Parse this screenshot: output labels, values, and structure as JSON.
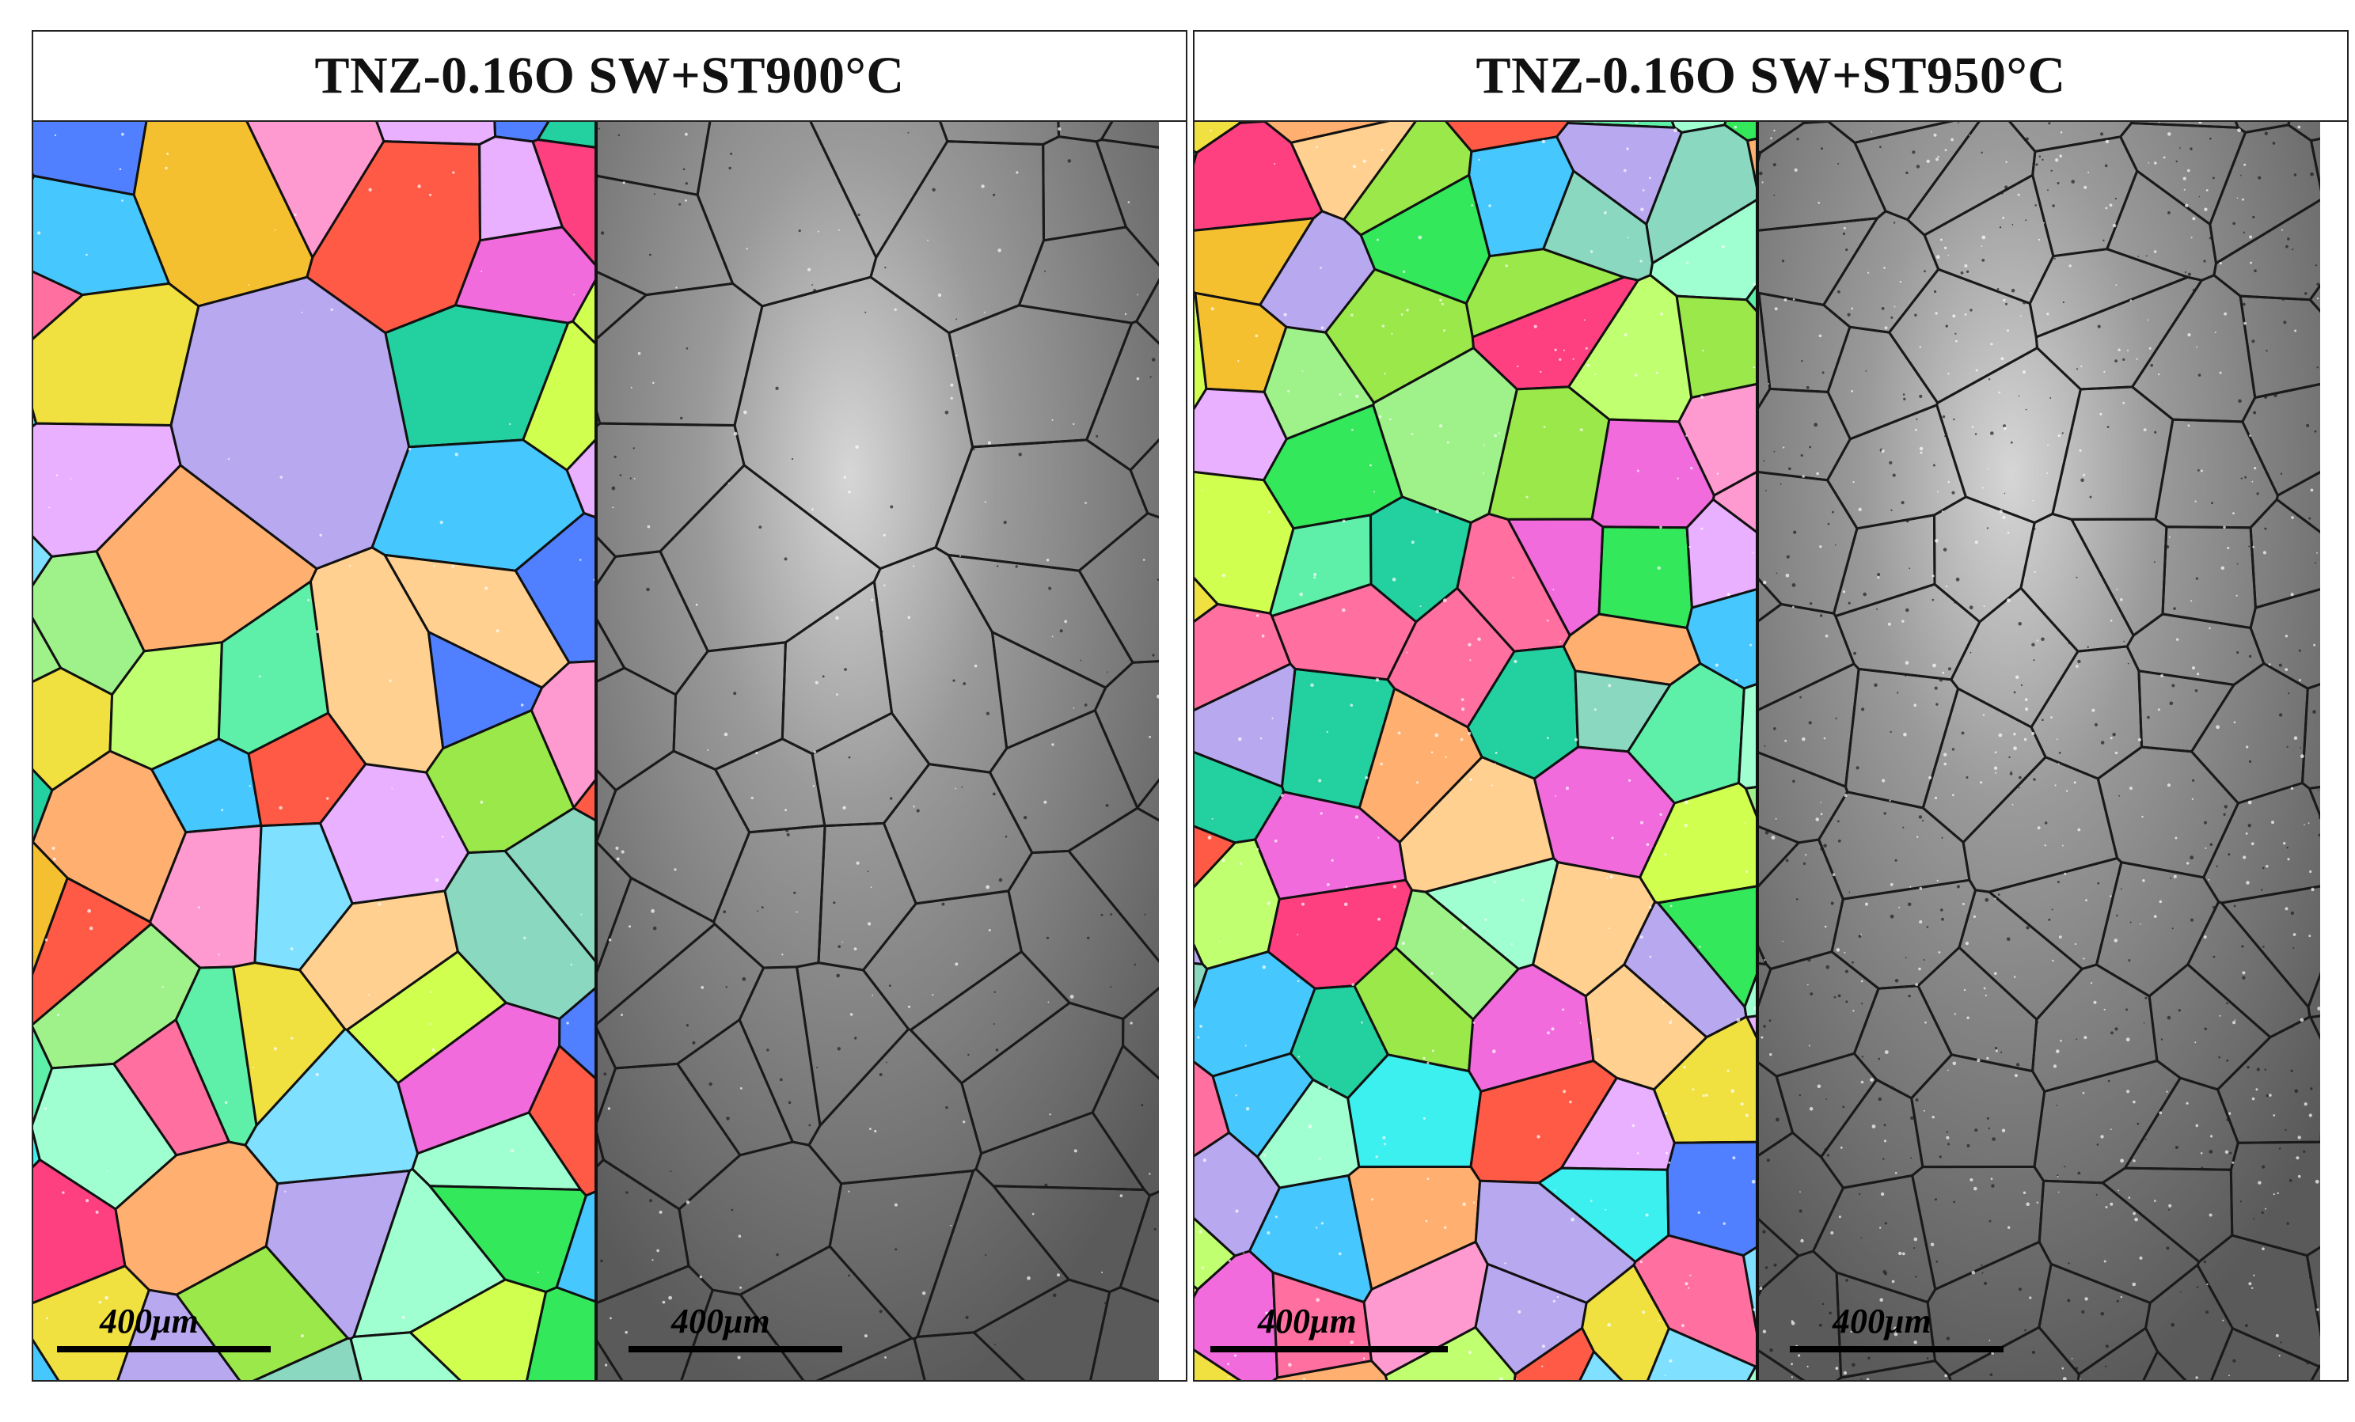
{
  "panels": [
    {
      "title": "TNZ-0.16O SW+ST900°C",
      "scalebar_ipf": "400μm",
      "scalebar_gray": "400μm"
    },
    {
      "title": "TNZ-0.16O SW+ST950°C",
      "scalebar_ipf": "400μm",
      "scalebar_gray": "400μm"
    }
  ],
  "colors": {
    "grain_palette": [
      "#33e85a",
      "#9ff28a",
      "#5ef0a8",
      "#f26bdc",
      "#f0e040",
      "#ff5a46",
      "#7fe0ff",
      "#b8a8f0",
      "#ffb070",
      "#3cf0f0",
      "#ff9ad0",
      "#9be84a",
      "#46c8ff",
      "#f5c030",
      "#c0ff70",
      "#ff70a0",
      "#8ad8c0",
      "#e8b0ff",
      "#22d0a0",
      "#ffd090",
      "#a0ffd0",
      "#5080ff",
      "#d0ff50",
      "#ff4080"
    ],
    "boundary": "#111111",
    "gray_base": "#7a7a7a"
  }
}
